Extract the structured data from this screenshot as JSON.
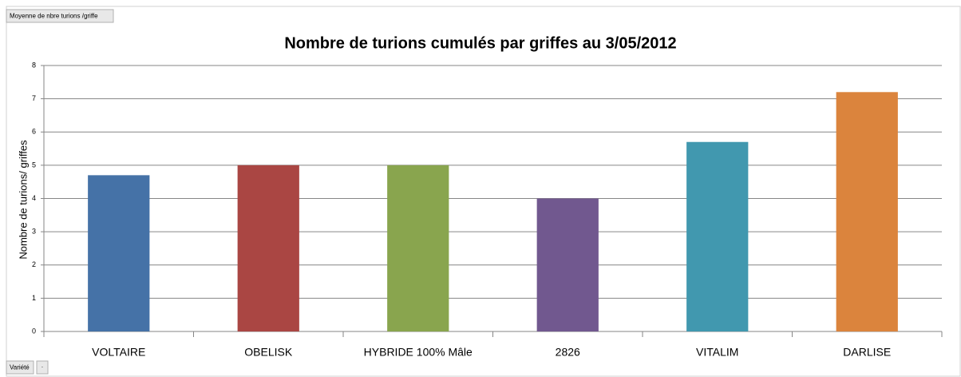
{
  "chart_data": {
    "type": "bar",
    "title": "Nombre de turions cumulés par griffes au 3/05/2012",
    "ylabel": "Nombre de turions/ griffes",
    "value_field": "Moyenne de nbre turions /griffe",
    "category_field": "Variété",
    "categories": [
      "VOLTAIRE",
      "OBELISK",
      "HYBRIDE 100% Mâle",
      "2826",
      "VITALIM",
      "DARLISE"
    ],
    "values": [
      4.7,
      5.0,
      5.0,
      4.0,
      5.7,
      7.2
    ],
    "colors": [
      "#4572a7",
      "#aa4643",
      "#89a54e",
      "#71588f",
      "#4198af",
      "#db843d"
    ],
    "ylim": [
      0,
      8
    ],
    "yticks": [
      0,
      1,
      2,
      3,
      4,
      5,
      6,
      7,
      8
    ],
    "grid": true
  }
}
